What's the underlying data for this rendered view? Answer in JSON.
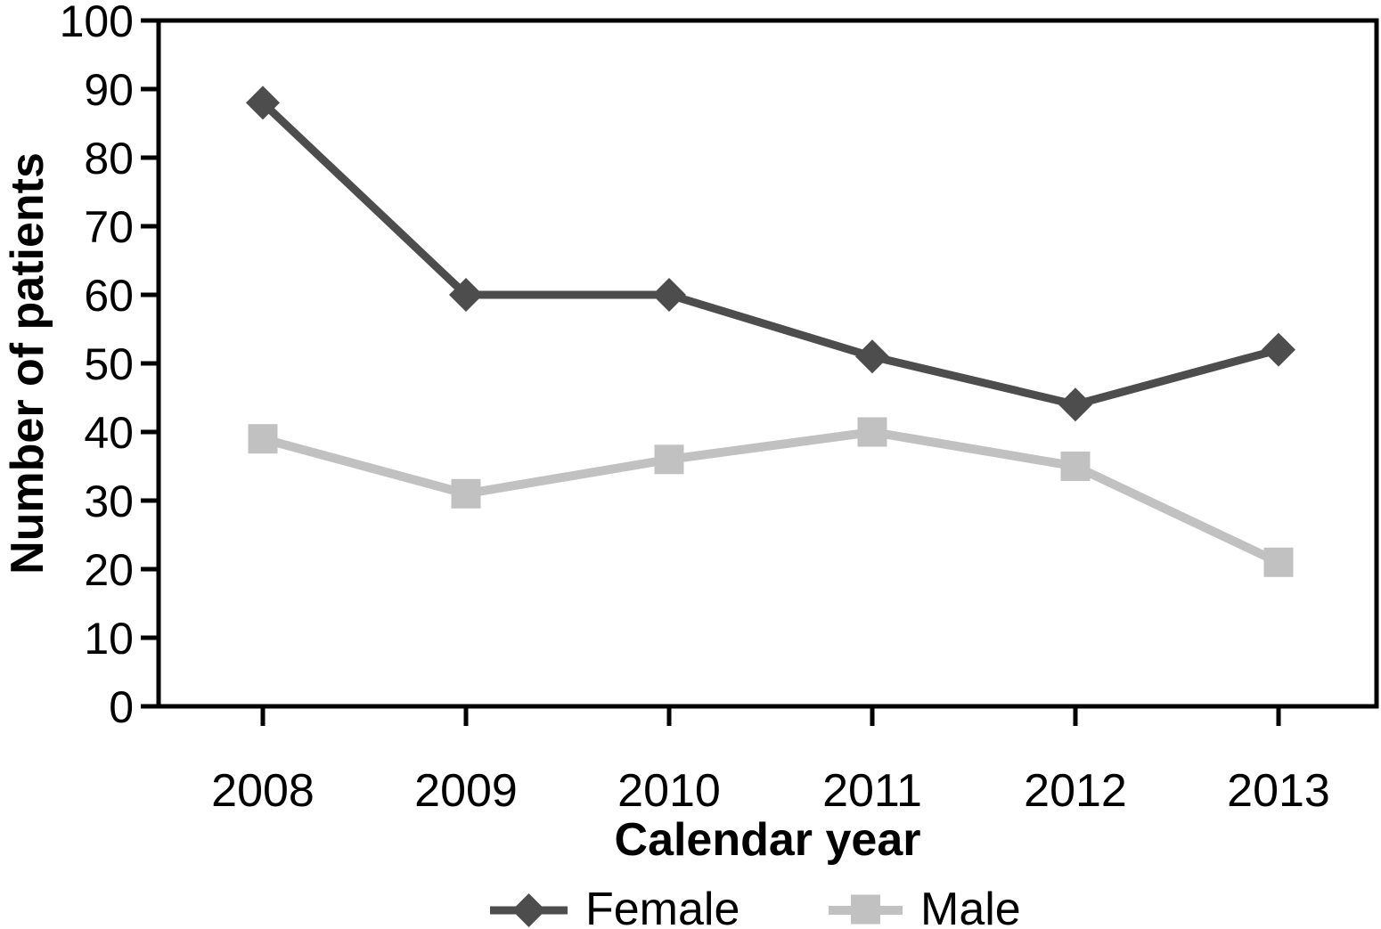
{
  "chart_data": {
    "type": "line",
    "title": "",
    "xlabel": "Calendar year",
    "ylabel": "Number of patients",
    "categories": [
      "2008",
      "2009",
      "2010",
      "2011",
      "2012",
      "2013"
    ],
    "series": [
      {
        "name": "Female",
        "values": [
          88,
          60,
          60,
          51,
          44,
          52
        ],
        "color": "#4d4d4d",
        "marker": "diamond"
      },
      {
        "name": "Male",
        "values": [
          39,
          31,
          36,
          40,
          35,
          21
        ],
        "color": "#c1c1c1",
        "marker": "square"
      }
    ],
    "ylim": [
      0,
      100
    ],
    "ytick_interval": 10,
    "grid": false,
    "legend_position": "bottom",
    "axis_color": "#000000",
    "background": "#ffffff"
  }
}
